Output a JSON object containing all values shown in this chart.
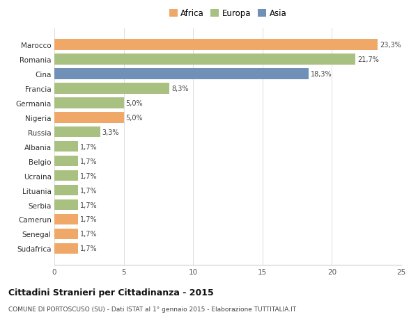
{
  "categories": [
    "Sudafrica",
    "Senegal",
    "Camerun",
    "Serbia",
    "Lituania",
    "Ucraina",
    "Belgio",
    "Albania",
    "Russia",
    "Nigeria",
    "Germania",
    "Francia",
    "Cina",
    "Romania",
    "Marocco"
  ],
  "values": [
    1.7,
    1.7,
    1.7,
    1.7,
    1.7,
    1.7,
    1.7,
    1.7,
    3.3,
    5.0,
    5.0,
    8.3,
    18.3,
    21.7,
    23.3
  ],
  "colors": [
    "#f0a868",
    "#f0a868",
    "#f0a868",
    "#a8c080",
    "#a8c080",
    "#a8c080",
    "#a8c080",
    "#a8c080",
    "#a8c080",
    "#f0a868",
    "#a8c080",
    "#a8c080",
    "#7090b8",
    "#a8c080",
    "#f0a868"
  ],
  "labels": [
    "1,7%",
    "1,7%",
    "1,7%",
    "1,7%",
    "1,7%",
    "1,7%",
    "1,7%",
    "1,7%",
    "3,3%",
    "5,0%",
    "5,0%",
    "8,3%",
    "18,3%",
    "21,7%",
    "23,3%"
  ],
  "legend": [
    {
      "label": "Africa",
      "color": "#f0a868"
    },
    {
      "label": "Europa",
      "color": "#a8c080"
    },
    {
      "label": "Asia",
      "color": "#7090b8"
    }
  ],
  "xlim": [
    0,
    25
  ],
  "xticks": [
    0,
    5,
    10,
    15,
    20,
    25
  ],
  "title": "Cittadini Stranieri per Cittadinanza - 2015",
  "subtitle": "COMUNE DI PORTOSCUSO (SU) - Dati ISTAT al 1° gennaio 2015 - Elaborazione TUTTITALIA.IT",
  "bg_color": "#ffffff",
  "bar_height": 0.75
}
